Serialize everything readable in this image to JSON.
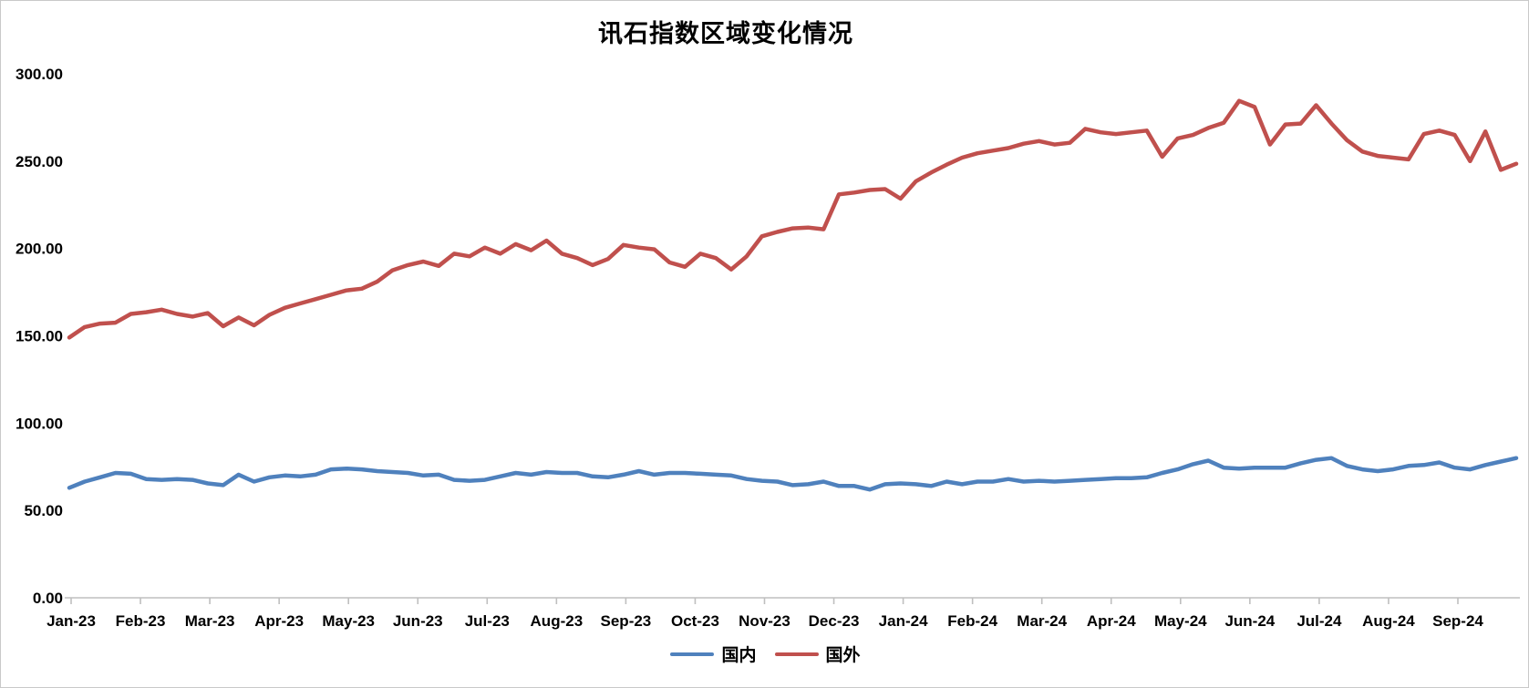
{
  "title": "讯石指数区域变化情况",
  "legend": {
    "items": [
      {
        "label": "国内",
        "color": "#4F81BD"
      },
      {
        "label": "国外",
        "color": "#C0504D"
      }
    ]
  },
  "colors": {
    "domestic_line": "#4F81BD",
    "foreign_line": "#C0504D",
    "axis_line": "#bfbfbf",
    "text": "#000000",
    "border": "#c9c9c9"
  },
  "y_axis": {
    "tick_labels": [
      "300.00",
      "250.00",
      "200.00",
      "150.00",
      "100.00",
      "50.00",
      "0.00"
    ],
    "tick_values": [
      300,
      250,
      200,
      150,
      100,
      50,
      0
    ]
  },
  "x_axis": {
    "labels": [
      "Jan-23",
      "Feb-23",
      "Mar-23",
      "Apr-23",
      "May-23",
      "Jun-23",
      "Jul-23",
      "Aug-23",
      "Sep-23",
      "Oct-23",
      "Nov-23",
      "Dec-23",
      "Jan-24",
      "Feb-24",
      "Mar-24",
      "Apr-24",
      "May-24",
      "Jun-24",
      "Jul-24",
      "Aug-24",
      "Sep-24"
    ]
  },
  "chart_data": {
    "type": "line",
    "title": "讯石指数区域变化情况",
    "xlabel": "",
    "ylabel": "",
    "ylim": [
      0,
      300
    ],
    "x_unit": "week",
    "x_tick_labels": [
      "Jan-23",
      "Feb-23",
      "Mar-23",
      "Apr-23",
      "May-23",
      "Jun-23",
      "Jul-23",
      "Aug-23",
      "Sep-23",
      "Oct-23",
      "Nov-23",
      "Dec-23",
      "Jan-24",
      "Feb-24",
      "Mar-24",
      "Apr-24",
      "May-24",
      "Jun-24",
      "Jul-24",
      "Aug-24",
      "Sep-24"
    ],
    "grid": false,
    "legend_position": "bottom",
    "series": [
      {
        "name": "国内",
        "color": "#4F81BD",
        "values": [
          63,
          66.5,
          69,
          71.5,
          71,
          68,
          67.5,
          68,
          67.5,
          65.5,
          64.5,
          70.5,
          66.5,
          69,
          70,
          69.5,
          70.5,
          73.5,
          74,
          73.5,
          72.5,
          72,
          71.5,
          70,
          70.5,
          67.5,
          67,
          67.5,
          69.5,
          71.5,
          70.5,
          72,
          71.5,
          71.5,
          69.5,
          69,
          70.5,
          72.5,
          70.5,
          71.5,
          71.5,
          71,
          70.5,
          70,
          68,
          67,
          66.5,
          64.5,
          65,
          66.5,
          64,
          64,
          62,
          65,
          65.5,
          65,
          64,
          66.5,
          65,
          66.5,
          66.5,
          68,
          66.5,
          67,
          66.5,
          67,
          67.5,
          68,
          68.5,
          68.5,
          69,
          71.5,
          73.5,
          76.5,
          78.5,
          74.5,
          74,
          74.5,
          74.5,
          74.5,
          77,
          79,
          80,
          75.5,
          73.5,
          72.5,
          73.5,
          75.5,
          76,
          77.5,
          74.5,
          73.5,
          76,
          78,
          80
        ]
      },
      {
        "name": "国外",
        "color": "#C0504D",
        "values": [
          149,
          155,
          157,
          157.5,
          162.5,
          163.5,
          165,
          162.5,
          161,
          163,
          155.5,
          160.5,
          156,
          162,
          166,
          168.5,
          171,
          173.5,
          176,
          177,
          181,
          187.5,
          190.5,
          192.5,
          190,
          197,
          195.5,
          200.5,
          197,
          202.5,
          199,
          204.5,
          197,
          194.5,
          190.5,
          194,
          202,
          200.5,
          199.5,
          192,
          189.5,
          197,
          194.5,
          188,
          195.5,
          207,
          209.5,
          211.5,
          212,
          211,
          231,
          232,
          233.5,
          234,
          228.5,
          238.5,
          243.5,
          248,
          252,
          254.5,
          256,
          257.5,
          260,
          261.5,
          259.5,
          260.5,
          268.5,
          266.5,
          265.5,
          266.5,
          267.5,
          252.5,
          263,
          265,
          269,
          272,
          284.5,
          281,
          259.5,
          271,
          271.5,
          282,
          271.5,
          262,
          255.5,
          253,
          252,
          251,
          265.5,
          267.5,
          265,
          250,
          267,
          245,
          248.5
        ]
      }
    ]
  }
}
